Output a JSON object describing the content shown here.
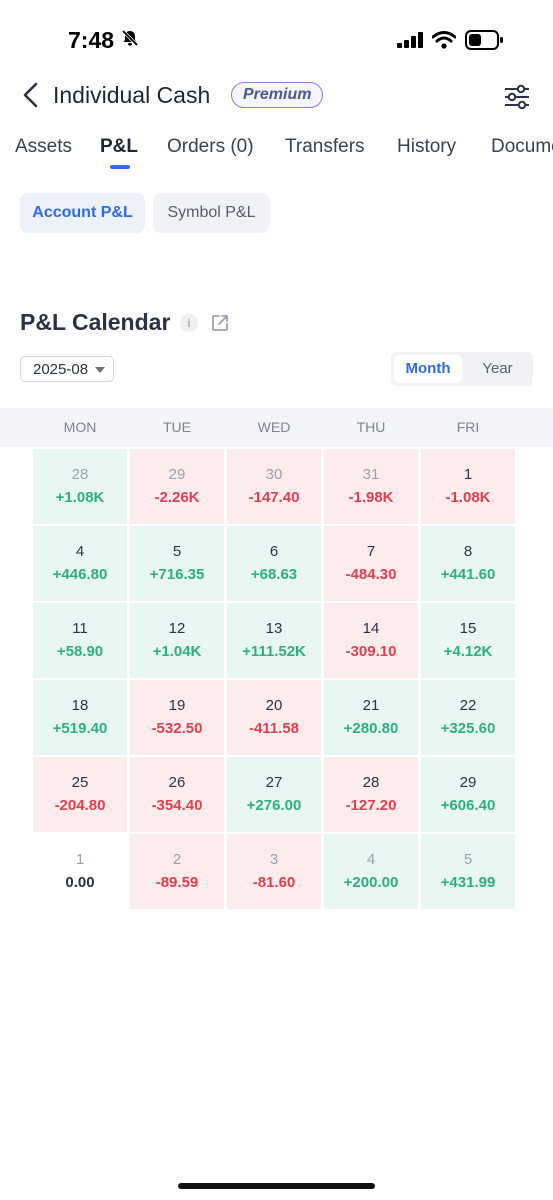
{
  "status_bar": {
    "time": "7:48"
  },
  "header": {
    "title": "Individual Cash",
    "badge": "Premium"
  },
  "tabs": [
    {
      "label": "Assets"
    },
    {
      "label": "P&L"
    },
    {
      "label": "Orders (0)"
    },
    {
      "label": "Transfers"
    },
    {
      "label": "History"
    },
    {
      "label": "Documents"
    }
  ],
  "segments": {
    "account": "Account P&L",
    "symbol": "Symbol P&L"
  },
  "calendar": {
    "title": "P&L Calendar",
    "info_glyph": "i",
    "selected_month": "2025-08",
    "view_toggle": {
      "month": "Month",
      "year": "Year"
    },
    "weekdays": [
      "MON",
      "TUE",
      "WED",
      "THU",
      "FRI"
    ],
    "weeks": [
      [
        {
          "day": "28",
          "value": "+1.08K",
          "tone": "up",
          "dim": true
        },
        {
          "day": "29",
          "value": "-2.26K",
          "tone": "down",
          "dim": true
        },
        {
          "day": "30",
          "value": "-147.40",
          "tone": "down",
          "dim": true
        },
        {
          "day": "31",
          "value": "-1.98K",
          "tone": "down",
          "dim": true
        },
        {
          "day": "1",
          "value": "-1.08K",
          "tone": "down",
          "dim": false
        }
      ],
      [
        {
          "day": "4",
          "value": "+446.80",
          "tone": "up",
          "dim": false
        },
        {
          "day": "5",
          "value": "+716.35",
          "tone": "up",
          "dim": false
        },
        {
          "day": "6",
          "value": "+68.63",
          "tone": "up",
          "dim": false
        },
        {
          "day": "7",
          "value": "-484.30",
          "tone": "down",
          "dim": false
        },
        {
          "day": "8",
          "value": "+441.60",
          "tone": "up",
          "dim": false
        }
      ],
      [
        {
          "day": "11",
          "value": "+58.90",
          "tone": "up",
          "dim": false
        },
        {
          "day": "12",
          "value": "+1.04K",
          "tone": "up",
          "dim": false
        },
        {
          "day": "13",
          "value": "+111.52K",
          "tone": "up",
          "dim": false
        },
        {
          "day": "14",
          "value": "-309.10",
          "tone": "down",
          "dim": false
        },
        {
          "day": "15",
          "value": "+4.12K",
          "tone": "up",
          "dim": false
        }
      ],
      [
        {
          "day": "18",
          "value": "+519.40",
          "tone": "up",
          "dim": false
        },
        {
          "day": "19",
          "value": "-532.50",
          "tone": "down",
          "dim": false
        },
        {
          "day": "20",
          "value": "-411.58",
          "tone": "down",
          "dim": false
        },
        {
          "day": "21",
          "value": "+280.80",
          "tone": "up",
          "dim": false
        },
        {
          "day": "22",
          "value": "+325.60",
          "tone": "up",
          "dim": false
        }
      ],
      [
        {
          "day": "25",
          "value": "-204.80",
          "tone": "down",
          "dim": false
        },
        {
          "day": "26",
          "value": "-354.40",
          "tone": "down",
          "dim": false
        },
        {
          "day": "27",
          "value": "+276.00",
          "tone": "up",
          "dim": false
        },
        {
          "day": "28",
          "value": "-127.20",
          "tone": "down",
          "dim": false
        },
        {
          "day": "29",
          "value": "+606.40",
          "tone": "up",
          "dim": false
        }
      ],
      [
        {
          "day": "1",
          "value": "0.00",
          "tone": "flat",
          "dim": true
        },
        {
          "day": "2",
          "value": "-89.59",
          "tone": "down",
          "dim": true
        },
        {
          "day": "3",
          "value": "-81.60",
          "tone": "down",
          "dim": true
        },
        {
          "day": "4",
          "value": "+200.00",
          "tone": "up",
          "dim": true
        },
        {
          "day": "5",
          "value": "+431.99",
          "tone": "up",
          "dim": true
        }
      ]
    ]
  },
  "colors": {
    "accent": "#2e6be6",
    "gain": "#2fae83",
    "loss": "#e0404f"
  },
  "icons": [
    "bell-slash-icon",
    "signal-icon",
    "wifi-icon",
    "battery-icon",
    "chevron-left-icon",
    "sliders-icon",
    "info-icon",
    "share-icon",
    "caret-down-icon"
  ]
}
